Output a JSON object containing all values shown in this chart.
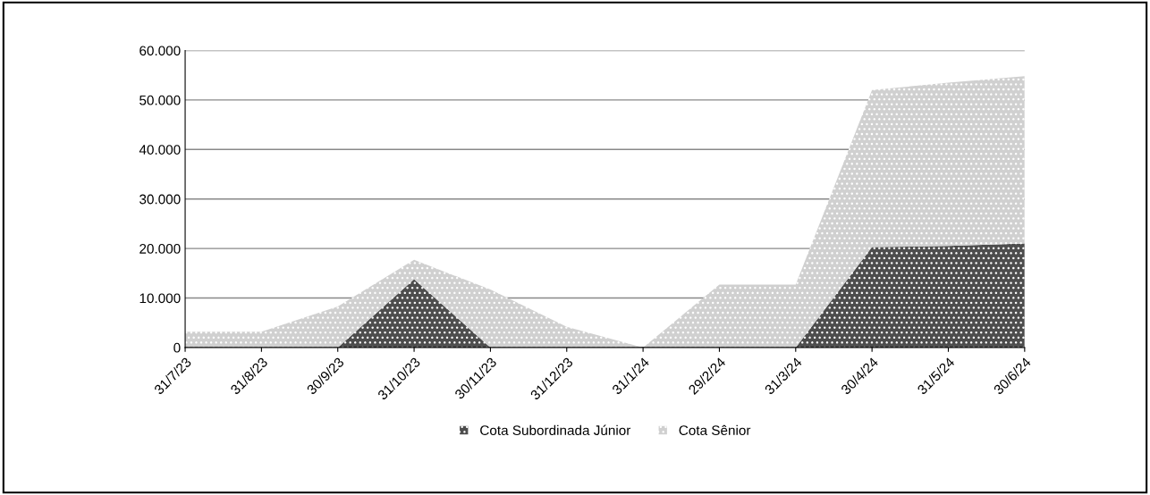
{
  "chart_data": {
    "type": "area",
    "stacked": true,
    "categories": [
      "31/7/23",
      "31/8/23",
      "30/9/23",
      "31/10/23",
      "30/11/23",
      "31/12/23",
      "31/1/24",
      "29/2/24",
      "31/3/24",
      "30/4/24",
      "31/5/24",
      "30/6/24"
    ],
    "series": [
      {
        "name": "Cota Subordinada Júnior",
        "color": "#4d4d4d",
        "values": [
          0,
          0,
          0,
          13800,
          0,
          0,
          0,
          0,
          0,
          20300,
          20500,
          21000
        ]
      },
      {
        "name": "Cota Sênior",
        "color": "#d0d0d0",
        "values": [
          3200,
          3200,
          8300,
          3900,
          11700,
          4200,
          0,
          12700,
          12700,
          31700,
          33000,
          33800
        ]
      }
    ],
    "ylim": [
      0,
      60000
    ],
    "yticks": [
      {
        "value": 0,
        "label": "0"
      },
      {
        "value": 10000,
        "label": "10.000"
      },
      {
        "value": 20000,
        "label": "20.000"
      },
      {
        "value": 30000,
        "label": "30.000"
      },
      {
        "value": 40000,
        "label": "40.000"
      },
      {
        "value": 50000,
        "label": "50.000"
      },
      {
        "value": 60000,
        "label": "60.000"
      }
    ],
    "grid": "y",
    "legend": "bottom"
  }
}
